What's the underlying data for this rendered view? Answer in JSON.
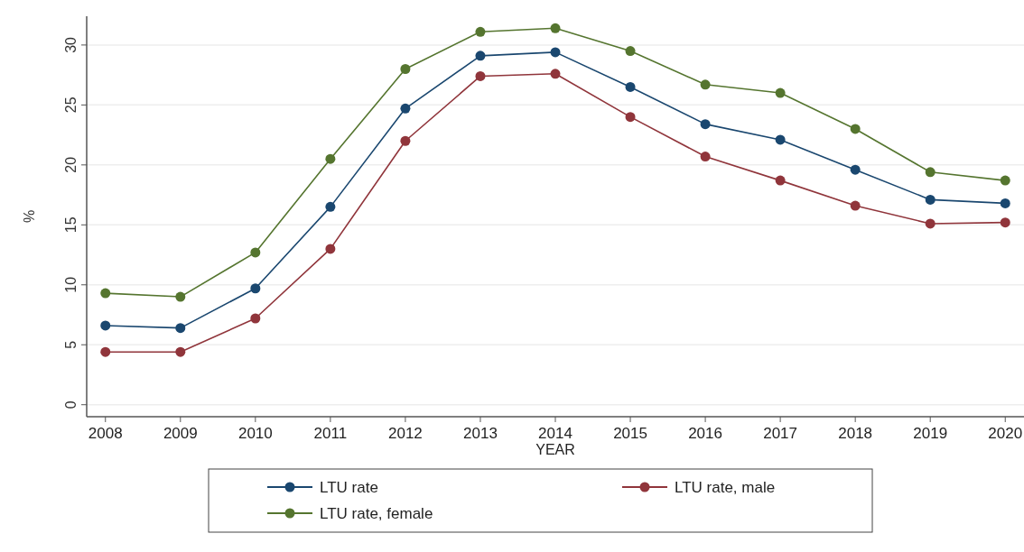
{
  "chart_data": {
    "type": "line",
    "xlabel": "YEAR",
    "ylabel": "%",
    "x": [
      2008,
      2009,
      2010,
      2011,
      2012,
      2013,
      2014,
      2015,
      2016,
      2017,
      2018,
      2019,
      2020
    ],
    "xlim": [
      2007.75,
      2020.25
    ],
    "xticks": [
      2008,
      2009,
      2010,
      2011,
      2012,
      2013,
      2014,
      2015,
      2016,
      2017,
      2018,
      2019,
      2020
    ],
    "ylim": [
      -1,
      32.4
    ],
    "yticks": [
      0,
      5,
      10,
      15,
      20,
      25,
      30
    ],
    "grid": "y",
    "legend": "bottom",
    "marker": "circle",
    "line_style": "solid",
    "series": [
      {
        "name": "LTU rate",
        "color": "#1a476f",
        "values": [
          6.6,
          6.4,
          9.7,
          16.5,
          24.7,
          29.1,
          29.4,
          26.5,
          23.4,
          22.1,
          19.6,
          17.1,
          16.8
        ]
      },
      {
        "name": "LTU rate, male",
        "color": "#90353b",
        "values": [
          4.4,
          4.4,
          7.2,
          13.0,
          22.0,
          27.4,
          27.6,
          24.0,
          20.7,
          18.7,
          16.6,
          15.1,
          15.2
        ]
      },
      {
        "name": "LTU rate, female",
        "color": "#55752f",
        "values": [
          9.3,
          9.0,
          12.7,
          20.5,
          28.0,
          31.1,
          31.4,
          29.5,
          26.7,
          26.0,
          23.0,
          19.4,
          18.7
        ]
      }
    ]
  }
}
